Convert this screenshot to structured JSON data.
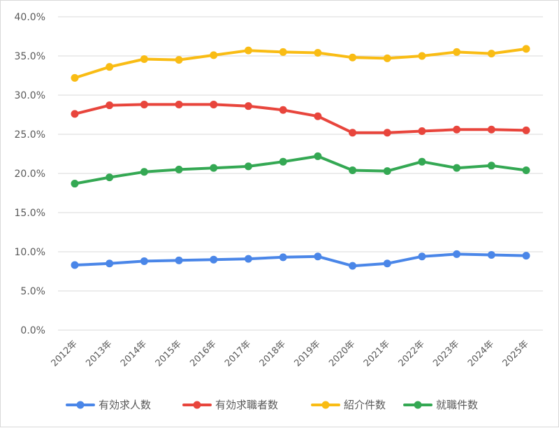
{
  "chart_data": {
    "type": "line",
    "title": "",
    "xlabel": "",
    "ylabel": "",
    "categories": [
      "2012年",
      "2013年",
      "2014年",
      "2015年",
      "2016年",
      "2017年",
      "2018年",
      "2019年",
      "2020年",
      "2021年",
      "2022年",
      "2023年",
      "2024年",
      "2025年"
    ],
    "ylim": [
      0,
      40
    ],
    "yticks": [
      "0.0%",
      "5.0%",
      "10.0%",
      "15.0%",
      "20.0%",
      "25.0%",
      "30.0%",
      "35.0%",
      "40.0%"
    ],
    "grid": true,
    "legend_position": "bottom",
    "series": [
      {
        "name": "有効求人数",
        "color": "#4a86e8",
        "values": [
          8.3,
          8.5,
          8.8,
          8.9,
          9.0,
          9.1,
          9.3,
          9.4,
          8.2,
          8.5,
          9.4,
          9.7,
          9.6,
          9.5
        ]
      },
      {
        "name": "有効求職者数",
        "color": "#e8453c",
        "values": [
          27.6,
          28.7,
          28.8,
          28.8,
          28.8,
          28.6,
          28.1,
          27.3,
          25.2,
          25.2,
          25.4,
          25.6,
          25.6,
          25.5
        ]
      },
      {
        "name": "紹介件数",
        "color": "#f9bc14",
        "values": [
          32.2,
          33.6,
          34.6,
          34.5,
          35.1,
          35.7,
          35.5,
          35.4,
          34.8,
          34.7,
          35.0,
          35.5,
          35.3,
          35.9
        ]
      },
      {
        "name": "就職件数",
        "color": "#34a853",
        "values": [
          18.7,
          19.5,
          20.2,
          20.5,
          20.7,
          20.9,
          21.5,
          22.2,
          20.4,
          20.3,
          21.5,
          20.7,
          21.0,
          20.4
        ]
      }
    ]
  }
}
